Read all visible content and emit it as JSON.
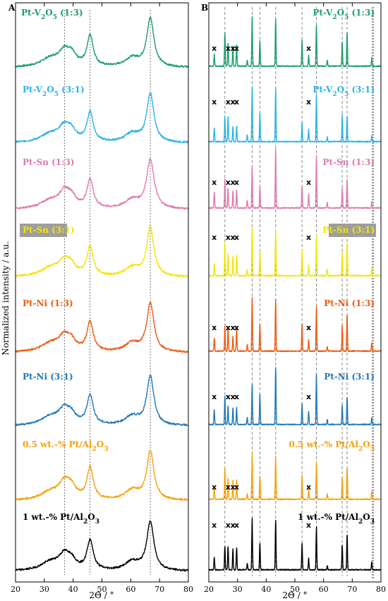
{
  "colors": {
    "Pt-V2O5 (1:3)": "#1a9e6a",
    "Pt-V2O5 (3:1)": "#2ab3e6",
    "Pt-Sn (1:3)": "#e07aad",
    "Pt-Sn (3:1)": "#f2e600",
    "Pt-Ni (1:3)": "#f05a10",
    "Pt-Ni (3:1)": "#1f78b9",
    "0.5 wt.-% Pt/Al2O3": "#f5a20a",
    "1 wt.-% Pt/Al2O3": "#000000",
    "highlight_box": "#9e9e9e"
  },
  "chart_data": [
    {
      "panel": "A",
      "type": "line",
      "xlabel": "2Θ / °",
      "ylabel": "Normalized intensity / a.u.",
      "xlim": [
        20,
        80
      ],
      "xticks": [
        20,
        30,
        40,
        50,
        60,
        70,
        80
      ],
      "reference_lines_x": [
        37,
        45.9,
        66.8
      ],
      "series": [
        {
          "name_parts": [
            "Pt-V",
            "2",
            "O",
            "5",
            " (1:3)"
          ],
          "key": "Pt-V2O5 (1:3)",
          "label_align": "right",
          "peaks": [
            [
              32,
              0.16,
              4
            ],
            [
              37,
              0.3,
              2.5
            ],
            [
              39.5,
              0.18,
              1.8
            ],
            [
              45.9,
              0.62,
              1.3
            ],
            [
              60.5,
              0.18,
              3
            ],
            [
              66.8,
              0.98,
              1.5
            ]
          ]
        },
        {
          "name_parts": [
            "Pt-V",
            "2",
            "O",
            "5",
            " (3:1)"
          ],
          "key": "Pt-V2O5 (3:1)",
          "label_align": "left",
          "peaks": [
            [
              32,
              0.16,
              4
            ],
            [
              37,
              0.3,
              2.5
            ],
            [
              39.5,
              0.16,
              1.8
            ],
            [
              45.9,
              0.6,
              1.3
            ],
            [
              60.5,
              0.18,
              3
            ],
            [
              66.8,
              0.98,
              1.5
            ]
          ]
        },
        {
          "name_parts": [
            "Pt-Sn (1:3)"
          ],
          "key": "Pt-Sn (1:3)",
          "label_align": "left",
          "peaks": [
            [
              32,
              0.16,
              4
            ],
            [
              37,
              0.32,
              2.3
            ],
            [
              39.5,
              0.18,
              1.8
            ],
            [
              45.9,
              0.58,
              1.3
            ],
            [
              60.5,
              0.18,
              3
            ],
            [
              66.8,
              0.98,
              1.6
            ]
          ]
        },
        {
          "name_parts": [
            "Pt-Sn (3:1)"
          ],
          "key": "Pt-Sn (3:1)",
          "label_align": "left",
          "boxed": true,
          "peaks": [
            [
              32,
              0.16,
              4
            ],
            [
              37,
              0.3,
              2.5
            ],
            [
              39.5,
              0.15,
              1.8
            ],
            [
              45.9,
              0.6,
              1.3
            ],
            [
              60.5,
              0.18,
              3
            ],
            [
              66.8,
              0.98,
              1.5
            ]
          ]
        },
        {
          "name_parts": [
            "Pt-Ni (1:3)"
          ],
          "key": "Pt-Ni (1:3)",
          "label_align": "left",
          "peaks": [
            [
              32,
              0.16,
              4
            ],
            [
              37,
              0.3,
              2.5
            ],
            [
              39.5,
              0.15,
              1.8
            ],
            [
              45.9,
              0.6,
              1.3
            ],
            [
              60.5,
              0.18,
              3
            ],
            [
              66.8,
              0.98,
              1.5
            ]
          ]
        },
        {
          "name_parts": [
            "Pt-Ni (3:1)"
          ],
          "key": "Pt-Ni (3:1)",
          "label_align": "left",
          "peaks": [
            [
              32,
              0.16,
              4
            ],
            [
              37,
              0.3,
              2.5
            ],
            [
              39.5,
              0.15,
              1.8
            ],
            [
              45.9,
              0.6,
              1.3
            ],
            [
              60.5,
              0.18,
              3
            ],
            [
              66.8,
              0.98,
              1.5
            ]
          ]
        },
        {
          "name_parts": [
            "0.5 wt.-% Pt/Al",
            "2",
            "O",
            "3"
          ],
          "key": "0.5 wt.-% Pt/Al2O3",
          "label_align": "left",
          "peaks": [
            [
              32,
              0.16,
              4
            ],
            [
              37,
              0.34,
              2.3
            ],
            [
              39.5,
              0.2,
              1.8
            ],
            [
              45.9,
              0.64,
              1.3
            ],
            [
              60.5,
              0.2,
              3
            ],
            [
              66.8,
              0.98,
              1.5
            ]
          ]
        },
        {
          "name_parts": [
            "1 wt.-% Pt/Al",
            "2",
            "O",
            "3"
          ],
          "key": "1 wt.-% Pt/Al2O3",
          "label_align": "left",
          "peaks": [
            [
              32,
              0.16,
              4
            ],
            [
              37,
              0.3,
              2.5
            ],
            [
              39.5,
              0.15,
              1.8
            ],
            [
              45.9,
              0.6,
              1.3
            ],
            [
              60.5,
              0.18,
              3
            ],
            [
              66.8,
              0.98,
              1.5
            ]
          ]
        }
      ]
    },
    {
      "panel": "B",
      "type": "line",
      "xlabel": "2Θ / °",
      "xlim": [
        20,
        80
      ],
      "xticks": [
        20,
        30,
        40,
        50,
        60,
        70,
        80
      ],
      "reference_lines_x": [
        25.6,
        35.1,
        37.8,
        43.3,
        52.5,
        57.5,
        66.5,
        68.2
      ],
      "thick_reference_line_x": 77.2,
      "x_marker": "x",
      "x_marker_positions": [
        21.9,
        26.7,
        28.4,
        29.7,
        54.8
      ],
      "series_keys": [
        "Pt-V2O5 (1:3)",
        "Pt-V2O5 (3:1)",
        "Pt-Sn (1:3)",
        "Pt-Sn (3:1)",
        "Pt-Ni (1:3)",
        "Pt-Ni (3:1)",
        "0.5 wt.-% Pt/Al2O3",
        "1 wt.-% Pt/Al2O3"
      ],
      "label_align": [
        "right",
        "right",
        "right",
        "right",
        "right",
        "right",
        "right",
        "right"
      ],
      "peaks": [
        [
          21.9,
          0.25
        ],
        [
          25.6,
          0.55
        ],
        [
          26.7,
          0.4
        ],
        [
          28.4,
          0.33
        ],
        [
          29.7,
          0.36
        ],
        [
          33.4,
          0.12
        ],
        [
          35.1,
          0.92
        ],
        [
          37.8,
          0.5
        ],
        [
          43.3,
          0.98
        ],
        [
          52.5,
          0.45
        ],
        [
          54.8,
          0.22
        ],
        [
          57.5,
          0.88
        ],
        [
          61.3,
          0.1
        ],
        [
          66.5,
          0.45
        ],
        [
          68.2,
          0.6
        ],
        [
          76.8,
          0.14
        ]
      ]
    }
  ]
}
